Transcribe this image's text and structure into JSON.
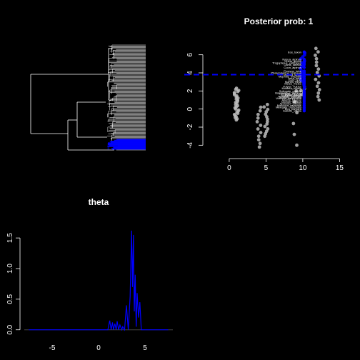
{
  "colors": {
    "background": "#000000",
    "foreground": "#ffffff",
    "highlight": "#0000ff",
    "tree_branch": "#ffffff",
    "points": "#bbbbbb"
  },
  "chart_data": [
    {
      "type": "tree",
      "title": "",
      "highlighted_clade": "blue",
      "tip_count": 120
    },
    {
      "type": "scatter",
      "title": "Posterior prob: 1",
      "xlabel": "",
      "ylabel": "",
      "xlim": [
        -3,
        17
      ],
      "ylim": [
        -5,
        7
      ],
      "xticks": [
        "0",
        "5",
        "10",
        "15"
      ],
      "yticks": [
        "-4",
        "-2",
        "0",
        "2",
        "4",
        "6"
      ],
      "threshold": 3.8,
      "columns": [
        {
          "x": 1,
          "y_min": -1.2,
          "y_max": 2.3,
          "n": 30
        },
        {
          "x": 4,
          "y_min": -4.2,
          "y_max": 0.2,
          "n": 12
        },
        {
          "x": 5,
          "y_min": -3.0,
          "y_max": 0.5,
          "n": 14
        },
        {
          "x": 9,
          "y_min": -4.0,
          "y_max": 2.0,
          "n": 6
        },
        {
          "x": 10,
          "y_min": 1.6,
          "y_max": 6.2,
          "n": 22
        },
        {
          "x": 12,
          "y_min": 1.0,
          "y_max": 6.7,
          "n": 16
        }
      ],
      "labeled_points": [
        {
          "label": "Eos_taxon",
          "x": 10,
          "y": 6.3
        },
        {
          "label": "Nasua_alpinus",
          "x": 10,
          "y": 5.5
        },
        {
          "label": "Ursus_arctos",
          "x": 10,
          "y": 5.3
        },
        {
          "label": "Trogopterus_xanthipes",
          "x": 10,
          "y": 5.1
        },
        {
          "label": "Canis_latrans",
          "x": 10,
          "y": 4.9
        },
        {
          "label": "Cuon_alpinus",
          "x": 10,
          "y": 4.6
        },
        {
          "label": "Procyon_lotor",
          "x": 10,
          "y": 4.2
        },
        {
          "label": "Phascolarctos_cinereus",
          "x": 10,
          "y": 4.0
        },
        {
          "label": "Taxidea_taxus",
          "x": 10,
          "y": 3.8
        },
        {
          "label": "Mephitis_mephitis",
          "x": 10,
          "y": 3.6
        },
        {
          "label": "Lutra_lutra",
          "x": 10,
          "y": 3.4
        },
        {
          "label": "Gulo_gulo",
          "x": 10,
          "y": 3.2
        },
        {
          "label": "Martes_foina",
          "x": 10,
          "y": 3.0
        },
        {
          "label": "Meles_meles",
          "x": 10,
          "y": 2.8
        },
        {
          "label": "Vulpes_vulpes",
          "x": 10,
          "y": 2.5
        },
        {
          "label": "Mustela_nivalis",
          "x": 10,
          "y": 2.3
        },
        {
          "label": "Spilogale_gracilis",
          "x": 10,
          "y": 2.0
        },
        {
          "label": "Bassariscus_astutus",
          "x": 10,
          "y": 1.8
        },
        {
          "label": "Potos_flavus",
          "x": 10,
          "y": 1.6
        },
        {
          "label": "Nandinia_binotata",
          "x": 10,
          "y": 1.4
        },
        {
          "label": "Vormela_peregusna",
          "x": 10,
          "y": 1.2
        },
        {
          "label": "Ailurus_fulgens",
          "x": 10,
          "y": 1.0
        },
        {
          "label": "Ictonyx_striatus",
          "x": 10,
          "y": 0.8
        },
        {
          "label": "Arctonyx_collaris",
          "x": 10,
          "y": 0.6
        },
        {
          "label": "Mellivora_capensis",
          "x": 10,
          "y": 0.4
        },
        {
          "label": "Melogale_moschata",
          "x": 10,
          "y": 0.2
        },
        {
          "label": "Eira_barbara",
          "x": 10,
          "y": 0.0
        },
        {
          "label": "Galictis_vittata",
          "x": 10,
          "y": -0.2
        },
        {
          "label": "Helogale_parvula",
          "x": 10,
          "y": 1.7
        },
        {
          "label": "Mungos_mungo",
          "x": 10,
          "y": 1.5
        },
        {
          "label": "Suricata_suricatta",
          "x": 10,
          "y": 1.3
        }
      ]
    },
    {
      "type": "line",
      "title": "theta",
      "xlabel": "",
      "ylabel": "",
      "xlim": [
        -8,
        8
      ],
      "ylim": [
        -0.05,
        1.7
      ],
      "xticks": [
        "-5",
        "0",
        "5"
      ],
      "yticks": [
        "0.0",
        "0.5",
        "1.0",
        "1.5"
      ],
      "series": [
        {
          "x": [
            -7.5,
            1.0,
            1.2,
            1.35,
            1.5,
            1.6,
            1.75,
            1.9,
            2.0,
            2.15,
            2.3,
            2.5,
            2.6,
            2.8,
            3.0,
            3.2,
            3.4,
            3.55,
            3.65,
            3.75,
            3.85,
            3.95,
            4.05,
            4.15,
            4.3,
            4.45,
            4.6,
            4.8,
            7.5
          ],
          "y": [
            0.0,
            0.0,
            0.15,
            0.0,
            0.12,
            0.0,
            0.1,
            0.0,
            0.14,
            0.0,
            0.08,
            0.0,
            0.05,
            0.0,
            0.4,
            0.0,
            0.55,
            1.62,
            0.7,
            1.55,
            0.3,
            0.9,
            0.05,
            0.6,
            0.2,
            0.45,
            0.0,
            0.0,
            0.0
          ]
        }
      ]
    }
  ]
}
